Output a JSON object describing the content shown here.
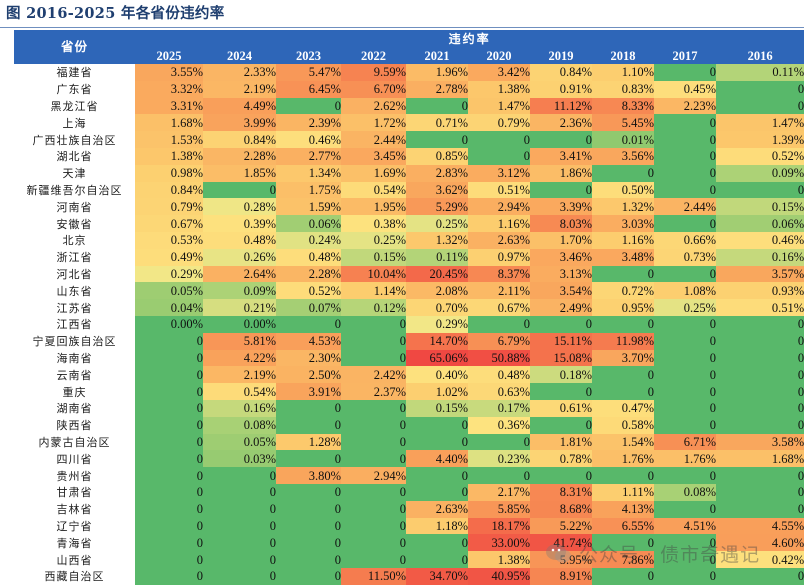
{
  "title": "图 2016-2025 年各省份违约率",
  "table": {
    "province_header": "省份",
    "group_header": "违约率",
    "years": [
      "2025",
      "2024",
      "2023",
      "2022",
      "2021",
      "2020",
      "2019",
      "2018",
      "2017",
      "2016"
    ],
    "rows": [
      {
        "province": "福建省",
        "values": [
          "3.55%",
          "2.33%",
          "5.47%",
          "9.59%",
          "1.96%",
          "3.42%",
          "0.84%",
          "1.10%",
          "0",
          "0.11%"
        ]
      },
      {
        "province": "广东省",
        "values": [
          "3.32%",
          "2.19%",
          "6.45%",
          "6.70%",
          "2.78%",
          "1.38%",
          "0.91%",
          "0.83%",
          "0.45%",
          "0"
        ]
      },
      {
        "province": "黑龙江省",
        "values": [
          "3.31%",
          "4.49%",
          "0",
          "2.62%",
          "0",
          "1.47%",
          "11.12%",
          "8.33%",
          "2.23%",
          "0"
        ]
      },
      {
        "province": "上海",
        "values": [
          "1.68%",
          "3.99%",
          "2.39%",
          "1.72%",
          "0.71%",
          "0.79%",
          "2.36%",
          "5.45%",
          "0",
          "1.47%"
        ]
      },
      {
        "province": "广西壮族自治区",
        "values": [
          "1.53%",
          "0.84%",
          "0.46%",
          "2.44%",
          "0",
          "0",
          "0",
          "0.01%",
          "0",
          "1.39%"
        ]
      },
      {
        "province": "湖北省",
        "values": [
          "1.38%",
          "2.28%",
          "2.77%",
          "3.45%",
          "0.85%",
          "0",
          "3.41%",
          "3.56%",
          "0",
          "0.52%"
        ]
      },
      {
        "province": "天津",
        "values": [
          "0.98%",
          "1.85%",
          "1.34%",
          "1.69%",
          "2.83%",
          "3.12%",
          "1.86%",
          "0",
          "0",
          "0.09%"
        ]
      },
      {
        "province": "新疆维吾尔自治区",
        "values": [
          "0.84%",
          "0",
          "1.75%",
          "0.54%",
          "3.62%",
          "0.51%",
          "0",
          "0.50%",
          "0",
          "0"
        ]
      },
      {
        "province": "河南省",
        "values": [
          "0.79%",
          "0.28%",
          "1.59%",
          "1.95%",
          "5.29%",
          "2.94%",
          "3.39%",
          "1.32%",
          "2.44%",
          "0.15%"
        ]
      },
      {
        "province": "安徽省",
        "values": [
          "0.67%",
          "0.39%",
          "0.06%",
          "0.38%",
          "0.25%",
          "1.16%",
          "8.03%",
          "3.03%",
          "0",
          "0.06%"
        ]
      },
      {
        "province": "北京",
        "values": [
          "0.53%",
          "0.48%",
          "0.24%",
          "0.25%",
          "1.32%",
          "2.63%",
          "1.70%",
          "1.16%",
          "0.66%",
          "0.46%"
        ]
      },
      {
        "province": "浙江省",
        "values": [
          "0.49%",
          "0.26%",
          "0.48%",
          "0.15%",
          "0.11%",
          "0.97%",
          "3.46%",
          "3.48%",
          "0.73%",
          "0.16%"
        ]
      },
      {
        "province": "河北省",
        "values": [
          "0.29%",
          "2.64%",
          "2.28%",
          "10.04%",
          "20.45%",
          "8.37%",
          "3.13%",
          "0",
          "0",
          "3.57%"
        ]
      },
      {
        "province": "山东省",
        "values": [
          "0.05%",
          "0.09%",
          "0.52%",
          "1.14%",
          "2.08%",
          "2.11%",
          "3.54%",
          "0.72%",
          "1.08%",
          "0.93%"
        ]
      },
      {
        "province": "江苏省",
        "values": [
          "0.04%",
          "0.21%",
          "0.07%",
          "0.12%",
          "0.70%",
          "0.67%",
          "2.49%",
          "0.95%",
          "0.25%",
          "0.51%"
        ]
      },
      {
        "province": "江西省",
        "values": [
          "0.00%",
          "0.00%",
          "0",
          "0",
          "0.29%",
          "0",
          "0",
          "0",
          "0",
          "0"
        ]
      },
      {
        "province": "宁夏回族自治区",
        "values": [
          "0",
          "5.81%",
          "4.53%",
          "0",
          "14.70%",
          "6.79%",
          "15.11%",
          "11.98%",
          "0",
          "0"
        ]
      },
      {
        "province": "海南省",
        "values": [
          "0",
          "4.22%",
          "2.30%",
          "0",
          "65.06%",
          "50.88%",
          "15.08%",
          "3.70%",
          "0",
          "0"
        ]
      },
      {
        "province": "云南省",
        "values": [
          "0",
          "2.19%",
          "2.50%",
          "2.42%",
          "0.40%",
          "0.48%",
          "0.18%",
          "0",
          "0",
          "0"
        ]
      },
      {
        "province": "重庆",
        "values": [
          "0",
          "0.54%",
          "3.91%",
          "2.37%",
          "1.02%",
          "0.63%",
          "0",
          "0",
          "0",
          "0"
        ]
      },
      {
        "province": "湖南省",
        "values": [
          "0",
          "0.16%",
          "0",
          "0",
          "0.15%",
          "0.17%",
          "0.61%",
          "0.47%",
          "0",
          "0"
        ]
      },
      {
        "province": "陕西省",
        "values": [
          "0",
          "0.08%",
          "0",
          "0",
          "0",
          "0.36%",
          "0",
          "0.58%",
          "0",
          "0"
        ]
      },
      {
        "province": "内蒙古自治区",
        "values": [
          "0",
          "0.05%",
          "1.28%",
          "0",
          "0",
          "0",
          "1.81%",
          "1.54%",
          "6.71%",
          "3.58%"
        ]
      },
      {
        "province": "四川省",
        "values": [
          "0",
          "0.03%",
          "0",
          "0",
          "4.40%",
          "0.23%",
          "0.78%",
          "1.76%",
          "1.76%",
          "1.68%"
        ]
      },
      {
        "province": "贵州省",
        "values": [
          "0",
          "0",
          "3.80%",
          "2.94%",
          "0",
          "0",
          "0",
          "0",
          "0",
          "0"
        ]
      },
      {
        "province": "甘肃省",
        "values": [
          "0",
          "0",
          "0",
          "0",
          "0",
          "2.17%",
          "8.31%",
          "1.11%",
          "0.08%",
          "0"
        ]
      },
      {
        "province": "吉林省",
        "values": [
          "0",
          "0",
          "0",
          "0",
          "2.63%",
          "5.85%",
          "8.68%",
          "4.13%",
          "0",
          "0"
        ]
      },
      {
        "province": "辽宁省",
        "values": [
          "0",
          "0",
          "0",
          "0",
          "1.18%",
          "18.17%",
          "5.22%",
          "6.55%",
          "4.51%",
          "4.55%"
        ]
      },
      {
        "province": "青海省",
        "values": [
          "0",
          "0",
          "0",
          "0",
          "0",
          "33.00%",
          "41.74%",
          "0",
          "0",
          "4.60%"
        ]
      },
      {
        "province": "山西省",
        "values": [
          "0",
          "0",
          "0",
          "0",
          "0",
          "1.38%",
          "5.95%",
          "7.86%",
          "0",
          "0.42%"
        ]
      },
      {
        "province": "西藏自治区",
        "values": [
          "0",
          "0",
          "0",
          "11.50%",
          "34.70%",
          "40.95%",
          "8.91%",
          "0",
          "0",
          "0"
        ]
      }
    ]
  },
  "watermark": {
    "text": "公众号 · 债市奇遇记",
    "icon": "wechat-icon"
  },
  "colors": {
    "header_bg": "#2e66b8",
    "title_text": "#1f3f70",
    "scale_zero": "#58b86a",
    "scale_low": "#fde27f",
    "scale_high": "#f04a43"
  }
}
